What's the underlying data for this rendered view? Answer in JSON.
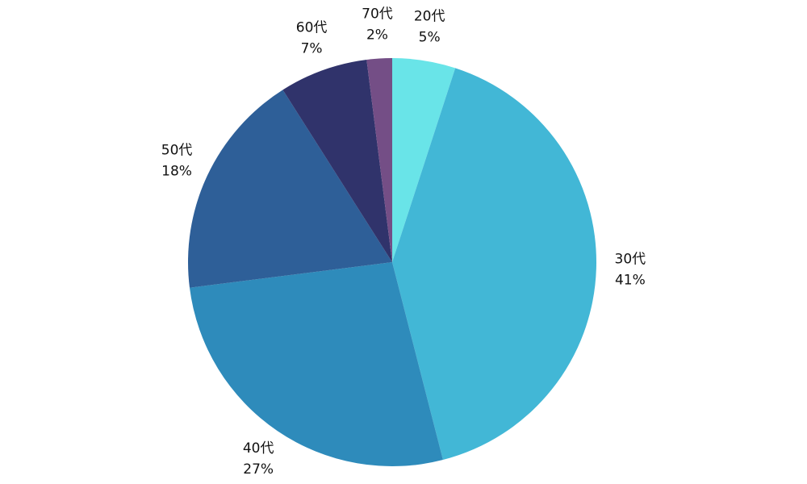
{
  "chart_data": {
    "type": "pie",
    "categories": [
      "20代",
      "30代",
      "40代",
      "50代",
      "60代",
      "70代"
    ],
    "values": [
      5,
      41,
      27,
      18,
      7,
      2
    ],
    "value_labels": [
      "5%",
      "41%",
      "27%",
      "18%",
      "7%",
      "2%"
    ],
    "colors": [
      "#69e4e8",
      "#42b7d6",
      "#2e8bbb",
      "#2e5f98",
      "#30336b",
      "#744e86"
    ]
  }
}
